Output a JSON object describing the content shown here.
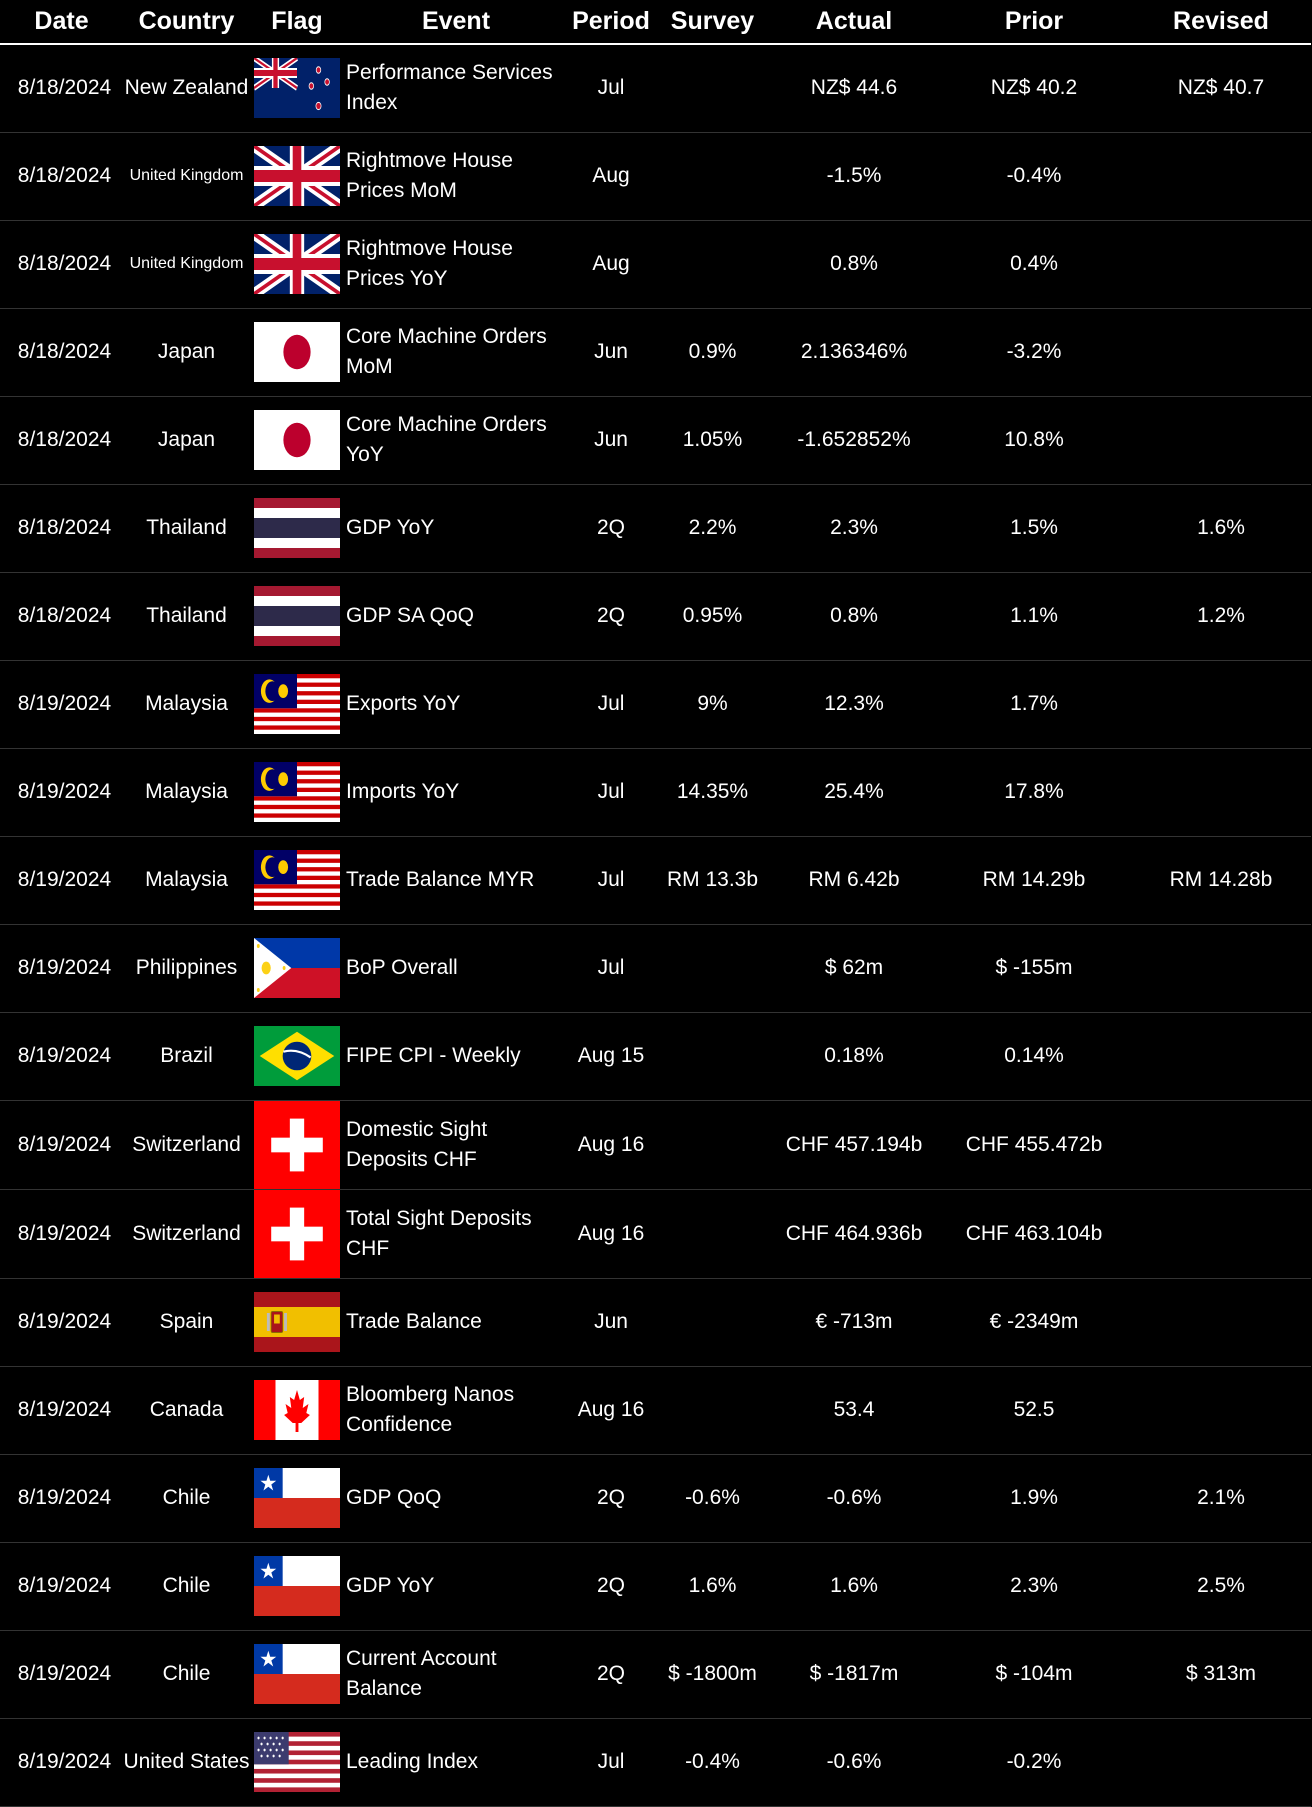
{
  "headers": [
    "Date",
    "Country",
    "Flag",
    "Event",
    "Period",
    "Survey",
    "Actual",
    "Prior",
    "Revised"
  ],
  "rows": [
    {
      "date": "8/18/2024",
      "country": "New Zealand",
      "flag": "new-zealand-flag",
      "event": "Performance Services Index",
      "period": "Jul",
      "survey": "",
      "actual": "NZ$ 44.6",
      "prior": "NZ$ 40.2",
      "revised": "NZ$ 40.7"
    },
    {
      "date": "8/18/2024",
      "country": "United Kingdom",
      "flag": "united-kingdom-flag",
      "event": "Rightmove House Prices MoM",
      "period": "Aug",
      "survey": "",
      "actual": "-1.5%",
      "prior": "-0.4%",
      "revised": ""
    },
    {
      "date": "8/18/2024",
      "country": "United Kingdom",
      "flag": "united-kingdom-flag",
      "event": "Rightmove House Prices YoY",
      "period": "Aug",
      "survey": "",
      "actual": "0.8%",
      "prior": "0.4%",
      "revised": ""
    },
    {
      "date": "8/18/2024",
      "country": "Japan",
      "flag": "japan-flag",
      "event": "Core Machine Orders MoM",
      "period": "Jun",
      "survey": "0.9%",
      "actual": "2.136346%",
      "prior": "-3.2%",
      "revised": ""
    },
    {
      "date": "8/18/2024",
      "country": "Japan",
      "flag": "japan-flag",
      "event": "Core Machine Orders YoY",
      "period": "Jun",
      "survey": "1.05%",
      "actual": "-1.652852%",
      "prior": "10.8%",
      "revised": ""
    },
    {
      "date": "8/18/2024",
      "country": "Thailand",
      "flag": "thailand-flag",
      "event": "GDP YoY",
      "period": "2Q",
      "survey": "2.2%",
      "actual": "2.3%",
      "prior": "1.5%",
      "revised": "1.6%"
    },
    {
      "date": "8/18/2024",
      "country": "Thailand",
      "flag": "thailand-flag",
      "event": "GDP SA QoQ",
      "period": "2Q",
      "survey": "0.95%",
      "actual": "0.8%",
      "prior": "1.1%",
      "revised": "1.2%"
    },
    {
      "date": "8/19/2024",
      "country": "Malaysia",
      "flag": "malaysia-flag",
      "event": "Exports YoY",
      "period": "Jul",
      "survey": "9%",
      "actual": "12.3%",
      "prior": "1.7%",
      "revised": ""
    },
    {
      "date": "8/19/2024",
      "country": "Malaysia",
      "flag": "malaysia-flag",
      "event": "Imports YoY",
      "period": "Jul",
      "survey": "14.35%",
      "actual": "25.4%",
      "prior": "17.8%",
      "revised": ""
    },
    {
      "date": "8/19/2024",
      "country": "Malaysia",
      "flag": "malaysia-flag",
      "event": "Trade Balance MYR",
      "period": "Jul",
      "survey": "RM 13.3b",
      "actual": "RM 6.42b",
      "prior": "RM 14.29b",
      "revised": "RM 14.28b"
    },
    {
      "date": "8/19/2024",
      "country": "Philippines",
      "flag": "philippines-flag",
      "event": "BoP Overall",
      "period": "Jul",
      "survey": "",
      "actual": "$ 62m",
      "prior": "$ -155m",
      "revised": ""
    },
    {
      "date": "8/19/2024",
      "country": "Brazil",
      "flag": "brazil-flag",
      "event": "FIPE CPI - Weekly",
      "period": "Aug 15",
      "survey": "",
      "actual": "0.18%",
      "prior": "0.14%",
      "revised": ""
    },
    {
      "date": "8/19/2024",
      "country": "Switzerland",
      "flag": "switzerland-flag",
      "event": "Domestic Sight Deposits CHF",
      "period": "Aug 16",
      "survey": "",
      "actual": "CHF 457.194b",
      "prior": "CHF 455.472b",
      "revised": ""
    },
    {
      "date": "8/19/2024",
      "country": "Switzerland",
      "flag": "switzerland-flag",
      "event": "Total Sight Deposits CHF",
      "period": "Aug 16",
      "survey": "",
      "actual": "CHF 464.936b",
      "prior": "CHF 463.104b",
      "revised": ""
    },
    {
      "date": "8/19/2024",
      "country": "Spain",
      "flag": "spain-flag",
      "event": "Trade Balance",
      "period": "Jun",
      "survey": "",
      "actual": "€ -713m",
      "prior": "€ -2349m",
      "revised": ""
    },
    {
      "date": "8/19/2024",
      "country": "Canada",
      "flag": "canada-flag",
      "event": "Bloomberg Nanos Confidence",
      "period": "Aug 16",
      "survey": "",
      "actual": "53.4",
      "prior": "52.5",
      "revised": ""
    },
    {
      "date": "8/19/2024",
      "country": "Chile",
      "flag": "chile-flag",
      "event": "GDP QoQ",
      "period": "2Q",
      "survey": "-0.6%",
      "actual": "-0.6%",
      "prior": "1.9%",
      "revised": "2.1%"
    },
    {
      "date": "8/19/2024",
      "country": "Chile",
      "flag": "chile-flag",
      "event": "GDP YoY",
      "period": "2Q",
      "survey": "1.6%",
      "actual": "1.6%",
      "prior": "2.3%",
      "revised": "2.5%"
    },
    {
      "date": "8/19/2024",
      "country": "Chile",
      "flag": "chile-flag",
      "event": "Current Account Balance",
      "period": "2Q",
      "survey": "$ -1800m",
      "actual": "$ -1817m",
      "prior": "$ -104m",
      "revised": "$ 313m"
    },
    {
      "date": "8/19/2024",
      "country": "United States",
      "flag": "united-states-flag",
      "event": "Leading Index",
      "period": "Jul",
      "survey": "-0.4%",
      "actual": "-0.6%",
      "prior": "-0.2%",
      "revised": ""
    }
  ]
}
